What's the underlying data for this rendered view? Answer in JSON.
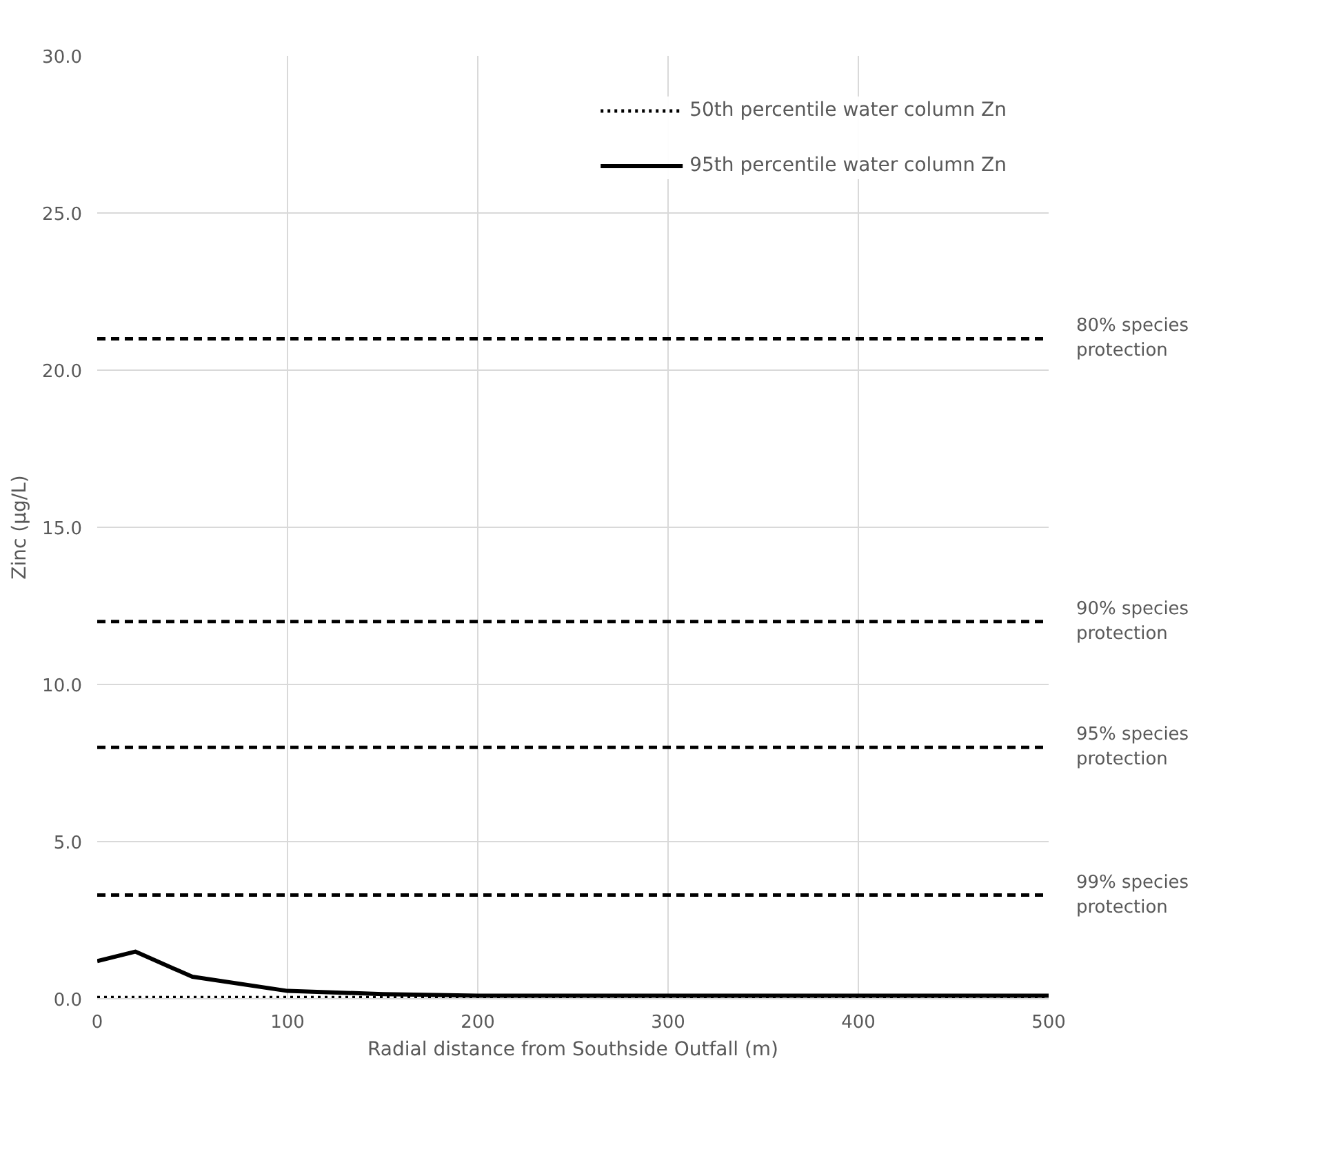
{
  "chart_data": {
    "type": "line",
    "xlabel": "Radial distance from Southside Outfall (m)",
    "ylabel": "Zinc (µg/L)",
    "x": [
      0,
      20,
      50,
      100,
      150,
      200,
      250,
      300,
      350,
      400,
      450,
      500
    ],
    "series": [
      {
        "name": "50th percentile water column Zn",
        "color": "#000000",
        "line_style": "dotted",
        "values": [
          0.04,
          0.04,
          0.04,
          0.04,
          0.04,
          0.04,
          0.04,
          0.04,
          0.04,
          0.04,
          0.04,
          0.04
        ]
      },
      {
        "name": "95th percentile water column Zn",
        "color": "#000000",
        "line_style": "solid",
        "values": [
          1.2,
          1.5,
          0.7,
          0.25,
          0.15,
          0.1,
          0.1,
          0.1,
          0.1,
          0.1,
          0.1,
          0.1
        ]
      }
    ],
    "ref_lines": [
      {
        "axis": "y",
        "value": 21,
        "label": "80% species protection",
        "line_style": "dashed",
        "color": "#000000"
      },
      {
        "axis": "y",
        "value": 12,
        "label": "90% species protection",
        "line_style": "dashed",
        "color": "#000000"
      },
      {
        "axis": "y",
        "value": 8,
        "label": "95% species protection",
        "line_style": "dashed",
        "color": "#000000"
      },
      {
        "axis": "y",
        "value": 3.3,
        "label": "99% species protection",
        "line_style": "dashed",
        "color": "#000000"
      }
    ],
    "xlim": [
      0,
      500
    ],
    "xticks": [
      0,
      100,
      200,
      300,
      400,
      500
    ],
    "ylim": [
      0,
      30
    ],
    "yticks": [
      {
        "value": 0,
        "label": "0.0"
      },
      {
        "value": 5,
        "label": "5.0"
      },
      {
        "value": 10,
        "label": "10.0"
      },
      {
        "value": 15,
        "label": "15.0"
      },
      {
        "value": 20,
        "label": "20.0"
      },
      {
        "value": 25,
        "label": "25.0"
      },
      {
        "value": 30,
        "label": "30.0"
      }
    ],
    "grid": true,
    "legend": "top right",
    "marker": "none"
  }
}
